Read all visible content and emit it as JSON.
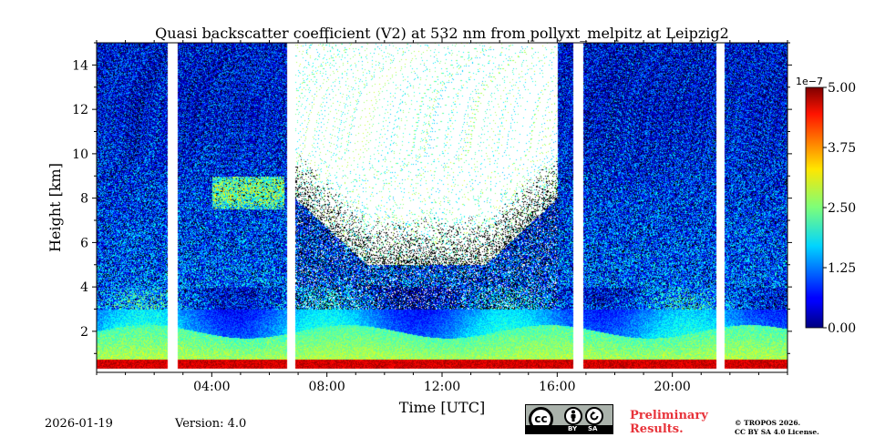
{
  "chart_data": {
    "type": "heatmap",
    "title": "Quasi backscatter coefficient (V2) at 532 nm from pollyxt_melpitz at Leipzig2",
    "xlabel": "Time [UTC]",
    "ylabel": "Height [km]",
    "xlim": [
      0,
      24
    ],
    "ylim": [
      0.15,
      15.0
    ],
    "x_ticks": [
      "04:00",
      "08:00",
      "12:00",
      "16:00",
      "20:00"
    ],
    "y_ticks": [
      "2",
      "4",
      "6",
      "8",
      "10",
      "12",
      "14"
    ],
    "colorbar": {
      "exponent_label": "1e−7",
      "min": 0.0,
      "max": 5.0,
      "tick_labels": [
        "0.00",
        "1.25",
        "2.50",
        "3.75",
        "5.00"
      ],
      "colormap": "jet"
    },
    "data_gaps_utc": [
      [
        2.45,
        2.8
      ],
      [
        6.6,
        6.9
      ],
      [
        16.55,
        16.9
      ],
      [
        21.5,
        21.8
      ]
    ],
    "white_noise_region": {
      "start": 6.9,
      "end": 16.0,
      "note": "daytime noise above boundary layer"
    },
    "features": [
      {
        "name": "aerosol layer",
        "start": 4.0,
        "end": 6.5,
        "bottom_km": 7.5,
        "top_km": 9.0
      },
      {
        "name": "near-surface layer",
        "start": 0,
        "end": 24,
        "bottom_km": 0.3,
        "top_km": 0.8
      }
    ]
  },
  "footer": {
    "date": "2026-01-19",
    "version": "Version: 4.0",
    "preliminary_line1": "Preliminary",
    "preliminary_line2": "Results.",
    "copyright_line1": "© TROPOS 2026.",
    "copyright_line2": "CC BY SA 4.0 License.",
    "license_badge": {
      "cc": "cc",
      "by": "BY",
      "sa": "SA"
    }
  },
  "colors": {
    "low": "#00007f",
    "high": "#7f0000",
    "prelim": "#e8333a"
  }
}
